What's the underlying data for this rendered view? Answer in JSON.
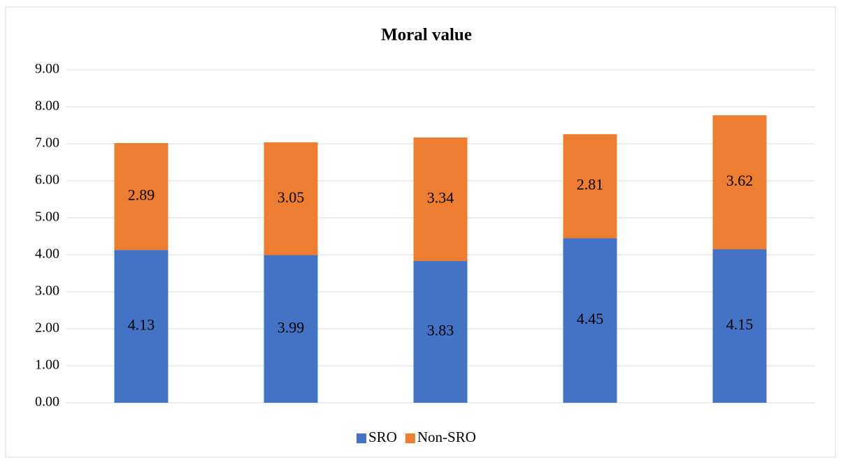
{
  "chart_data": {
    "type": "stacked_bar",
    "title": "Moral value",
    "categories": [
      null,
      null,
      null,
      null,
      null
    ],
    "series": [
      {
        "name": "SRO",
        "color": "#4472c4",
        "values": [
          4.13,
          3.99,
          3.83,
          4.45,
          4.15
        ]
      },
      {
        "name": "Non-SRO",
        "color": "#ed7d31",
        "values": [
          2.89,
          3.05,
          3.34,
          2.81,
          3.62
        ]
      }
    ],
    "ylim": [
      0,
      9
    ],
    "yticks": [
      {
        "value": 0,
        "label": "0.00"
      },
      {
        "value": 1,
        "label": "1.00"
      },
      {
        "value": 2,
        "label": "2.00"
      },
      {
        "value": 3,
        "label": "3.00"
      },
      {
        "value": 4,
        "label": "4.00"
      },
      {
        "value": 5,
        "label": "5.00"
      },
      {
        "value": 6,
        "label": "6.00"
      },
      {
        "value": 7,
        "label": "7.00"
      },
      {
        "value": 8,
        "label": "8.00"
      },
      {
        "value": 9,
        "label": "9.00"
      }
    ],
    "grid": true,
    "legend": "bottom"
  }
}
